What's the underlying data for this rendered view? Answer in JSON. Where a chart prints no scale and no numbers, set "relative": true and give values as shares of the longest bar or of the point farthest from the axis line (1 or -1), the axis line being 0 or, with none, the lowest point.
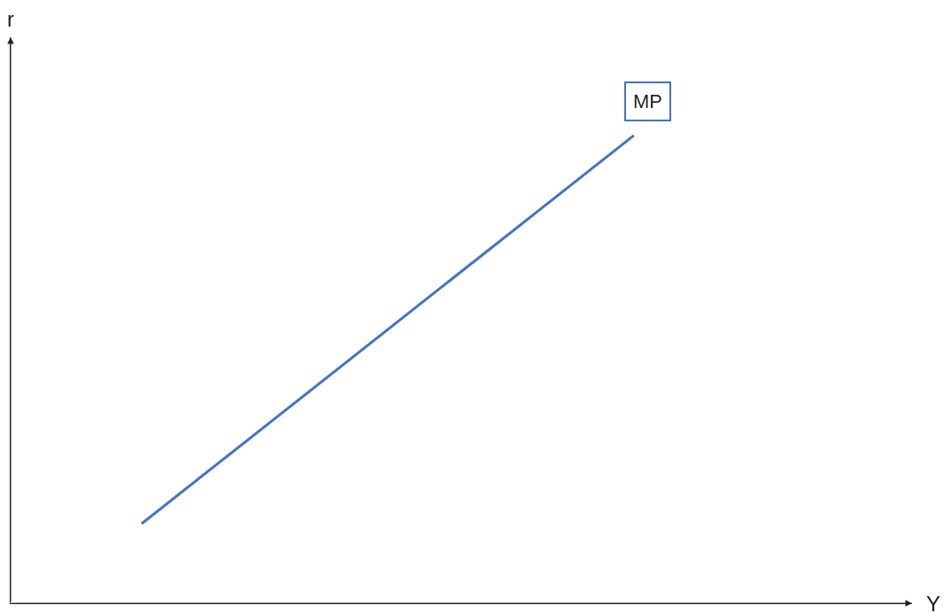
{
  "chart_data": {
    "type": "line",
    "xlabel": "Y",
    "ylabel": "r",
    "categories": [
      null,
      null
    ],
    "relative": true,
    "legend": false,
    "marker": "none",
    "line_style": "solid",
    "series": [
      {
        "name": "MP",
        "color": "#4472c4",
        "values": [
          0.17,
          1
        ]
      }
    ]
  }
}
